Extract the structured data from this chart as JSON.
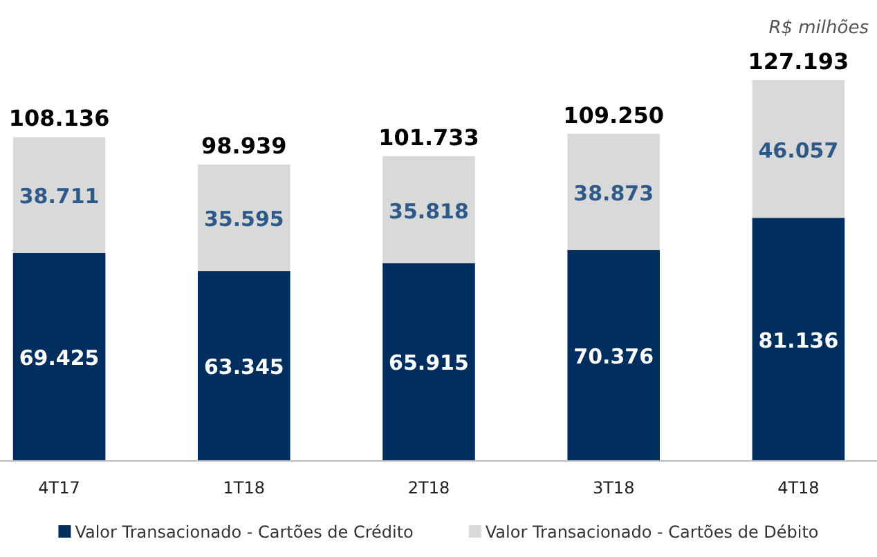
{
  "chart_data": {
    "type": "bar",
    "stacked": true,
    "legend": "bottom",
    "annotations": [
      "R$ milhões"
    ],
    "categories": [
      "4T17",
      "1T18",
      "2T18",
      "3T18",
      "4T18"
    ],
    "series": [
      {
        "name": "Valor Transacionado - Cartões de Crédito",
        "color": "#002f5f",
        "values": [
          69425,
          63345,
          65915,
          70376,
          81136
        ],
        "value_labels": [
          "69.425",
          "63.345",
          "65.915",
          "70.376",
          "81.136"
        ]
      },
      {
        "name": "Valor Transacionado - Cartões de Débito",
        "color": "#d9d9d9",
        "values": [
          38711,
          35595,
          35818,
          38873,
          46057
        ],
        "value_labels": [
          "38.711",
          "35.595",
          "35.818",
          "38.873",
          "46.057"
        ]
      }
    ],
    "totals": [
      "108.136",
      "98.939",
      "101.733",
      "109.250",
      "127.193"
    ]
  }
}
